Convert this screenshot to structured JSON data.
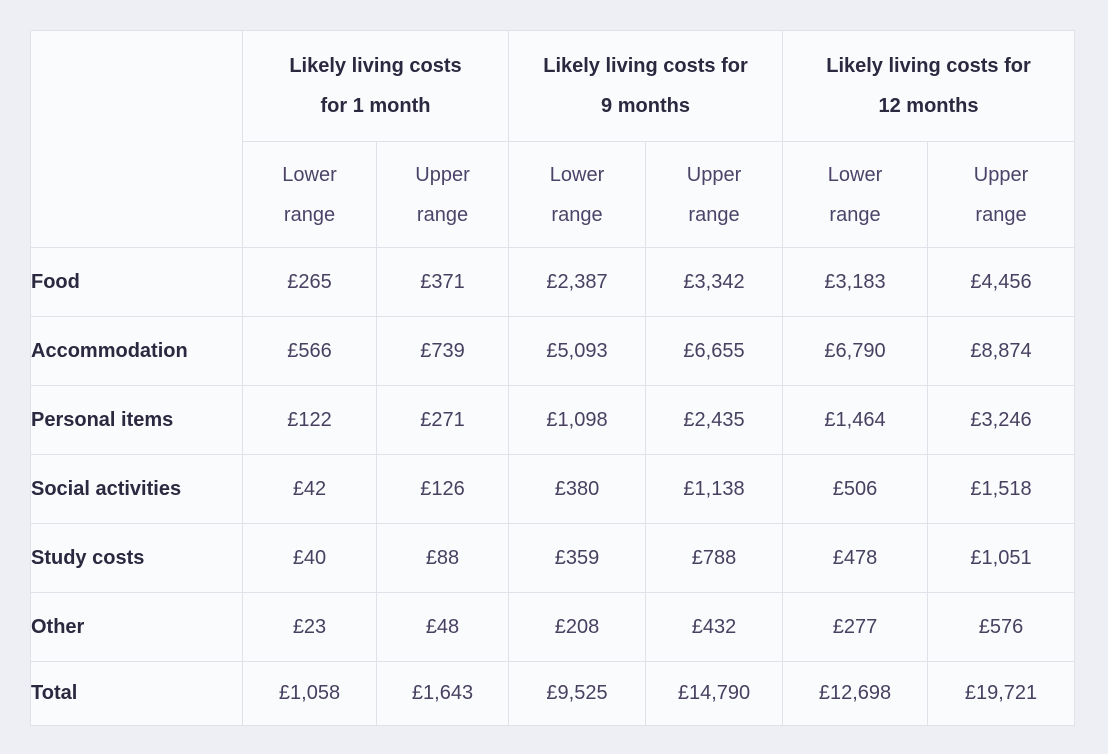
{
  "colors": {
    "page_background": "#edeff4",
    "cell_background": "#fafbfd",
    "border": "#e0e2e9",
    "header_text": "#2b2840",
    "value_text": "#474060"
  },
  "table": {
    "corner_label": "",
    "col_groups": [
      {
        "label": "Likely living costs for 1 month",
        "lines": [
          "Likely living costs",
          "for 1 month"
        ]
      },
      {
        "label": "Likely living costs for 9 months",
        "lines": [
          "Likely living costs for",
          "9 months"
        ]
      },
      {
        "label": "Likely living costs for 12 months",
        "lines": [
          "Likely living costs for",
          "12 months"
        ]
      }
    ],
    "sub_headers": {
      "lower": {
        "label": "Lower range",
        "lines": [
          "Lower",
          "range"
        ]
      },
      "upper": {
        "label": "Upper range",
        "lines": [
          "Upper",
          "range"
        ]
      }
    },
    "rows": [
      {
        "label": "Food",
        "values": [
          "£265",
          "£371",
          "£2,387",
          "£3,342",
          "£3,183",
          "£4,456"
        ]
      },
      {
        "label": "Accommodation",
        "values": [
          "£566",
          "£739",
          "£5,093",
          "£6,655",
          "£6,790",
          "£8,874"
        ]
      },
      {
        "label": "Personal items",
        "values": [
          "£122",
          "£271",
          "£1,098",
          "£2,435",
          "£1,464",
          "£3,246"
        ]
      },
      {
        "label": "Social activities",
        "values": [
          "£42",
          "£126",
          "£380",
          "£1,138",
          "£506",
          "£1,518"
        ]
      },
      {
        "label": "Study costs",
        "values": [
          "£40",
          "£88",
          "£359",
          "£788",
          "£478",
          "£1,051"
        ]
      },
      {
        "label": "Other",
        "values": [
          "£23",
          "£48",
          "£208",
          "£432",
          "£277",
          "£576"
        ]
      },
      {
        "label": "Total",
        "values": [
          "£1,058",
          "£1,643",
          "£9,525",
          "£14,790",
          "£12,698",
          "£19,721"
        ]
      }
    ]
  },
  "chart_data": {
    "type": "table",
    "title": "",
    "currency": "GBP",
    "column_groups": [
      "Likely living costs for 1 month",
      "Likely living costs for 9 months",
      "Likely living costs for 12 months"
    ],
    "sub_columns": [
      "Lower range",
      "Upper range"
    ],
    "row_labels": [
      "Food",
      "Accommodation",
      "Personal items",
      "Social activities",
      "Study costs",
      "Other",
      "Total"
    ],
    "values": {
      "Food": [
        265,
        371,
        2387,
        3342,
        3183,
        4456
      ],
      "Accommodation": [
        566,
        739,
        5093,
        6655,
        6790,
        8874
      ],
      "Personal items": [
        122,
        271,
        1098,
        2435,
        1464,
        3246
      ],
      "Social activities": [
        42,
        126,
        380,
        1138,
        506,
        1518
      ],
      "Study costs": [
        40,
        88,
        359,
        788,
        478,
        1051
      ],
      "Other": [
        23,
        48,
        208,
        432,
        277,
        576
      ],
      "Total": [
        1058,
        1643,
        9525,
        14790,
        12698,
        19721
      ]
    }
  }
}
